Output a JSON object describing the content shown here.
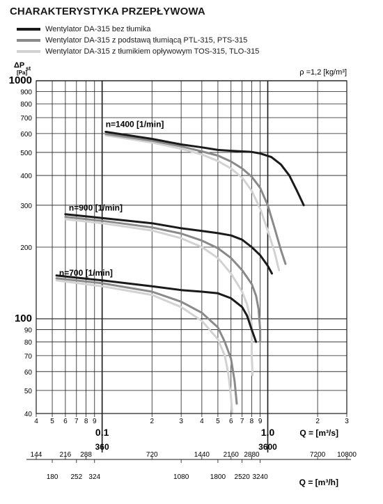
{
  "title": "CHARAKTERYSTYKA PRZEPŁYWOWA",
  "density_note": "ρ =1,2 [kg/m³]",
  "chart_data": {
    "type": "line",
    "title": "CHARAKTERYSTYKA PRZEPŁYWOWA",
    "ylabel": "ΔPst [Pa]",
    "xlabel": "Q = [m³/s]",
    "x2label": "Q = [m³/h]",
    "x_scale": "log",
    "y_scale": "log",
    "xlim": [
      0.04,
      3
    ],
    "ylim": [
      40,
      1000
    ],
    "grid": true,
    "legend": [
      {
        "name": "Wentylator DA-315 bez tłumika",
        "color": "#1a1a1a"
      },
      {
        "name": "Wentylator DA-315 z podstawą tłumiącą PTL-315, PTS-315",
        "color": "#8a8a8a"
      },
      {
        "name": "Wentylator DA-315 z tłumikiem opływowym TOS-315, TLO-315",
        "color": "#d2d2d2"
      }
    ],
    "y_ticks": [
      {
        "v": 40,
        "label": "40"
      },
      {
        "v": 50,
        "label": "50"
      },
      {
        "v": 60,
        "label": "60"
      },
      {
        "v": 70,
        "label": "70"
      },
      {
        "v": 80,
        "label": "80"
      },
      {
        "v": 90,
        "label": "90"
      },
      {
        "v": 100,
        "label": "100"
      },
      {
        "v": 200,
        "label": "200"
      },
      {
        "v": 300,
        "label": "300"
      },
      {
        "v": 400,
        "label": "400"
      },
      {
        "v": 500,
        "label": "500"
      },
      {
        "v": 600,
        "label": "600"
      },
      {
        "v": 700,
        "label": "700"
      },
      {
        "v": 800,
        "label": "800"
      },
      {
        "v": 900,
        "label": "900"
      },
      {
        "v": 1000,
        "label": "1000"
      }
    ],
    "x_ticks": [
      {
        "v": 0.04,
        "label": "4"
      },
      {
        "v": 0.05,
        "label": "5"
      },
      {
        "v": 0.06,
        "label": "6"
      },
      {
        "v": 0.07,
        "label": "7"
      },
      {
        "v": 0.08,
        "label": "8"
      },
      {
        "v": 0.09,
        "label": "9"
      },
      {
        "v": 0.2,
        "label": "2"
      },
      {
        "v": 0.3,
        "label": "3"
      },
      {
        "v": 0.4,
        "label": "4"
      },
      {
        "v": 0.5,
        "label": "5"
      },
      {
        "v": 0.6,
        "label": "6"
      },
      {
        "v": 0.7,
        "label": "7"
      },
      {
        "v": 0.8,
        "label": "8"
      },
      {
        "v": 0.9,
        "label": "9"
      },
      {
        "v": 2,
        "label": "2"
      },
      {
        "v": 3,
        "label": "3"
      }
    ],
    "x_major_ticks": [
      {
        "v": 0.1,
        "label": "0.1",
        "sub": "360"
      },
      {
        "v": 1.0,
        "label": "1.0",
        "sub": "3600"
      }
    ],
    "x2_ticks_top": [
      {
        "v": 144,
        "label": "144"
      },
      {
        "v": 216,
        "label": "216"
      },
      {
        "v": 288,
        "label": "288"
      },
      {
        "v": 720,
        "label": "720"
      },
      {
        "v": 1440,
        "label": "1440"
      },
      {
        "v": 2160,
        "label": "2160"
      },
      {
        "v": 2880,
        "label": "2880"
      },
      {
        "v": 7200,
        "label": "7200"
      },
      {
        "v": 10800,
        "label": "10800"
      }
    ],
    "x2_ticks_bottom": [
      {
        "v": 180,
        "label": "180"
      },
      {
        "v": 252,
        "label": "252"
      },
      {
        "v": 324,
        "label": "324"
      },
      {
        "v": 1080,
        "label": "1080"
      },
      {
        "v": 1800,
        "label": "1800"
      },
      {
        "v": 2520,
        "label": "2520"
      },
      {
        "v": 3240,
        "label": "3240"
      }
    ],
    "speed_labels": [
      {
        "text": "n=1400 [1/min]",
        "x": 0.105,
        "y": 640
      },
      {
        "text": "n=900 [1/min]",
        "x": 0.063,
        "y": 285
      },
      {
        "text": "n=700 [1/min]",
        "x": 0.055,
        "y": 152
      }
    ],
    "series": [
      {
        "name": "Wentylator DA-315 bez tłumika",
        "speed": "n=1400 [1/min]",
        "color": "#1a1a1a",
        "points": [
          [
            0.105,
            610
          ],
          [
            0.2,
            570
          ],
          [
            0.3,
            540
          ],
          [
            0.4,
            525
          ],
          [
            0.5,
            512
          ],
          [
            0.6,
            508
          ],
          [
            0.8,
            502
          ],
          [
            0.9,
            495
          ],
          [
            1.05,
            478
          ],
          [
            1.2,
            445
          ],
          [
            1.35,
            400
          ],
          [
            1.5,
            345
          ],
          [
            1.65,
            300
          ]
        ]
      },
      {
        "name": "Wentylator DA-315 z podstawą tłumiącą PTL-315, PTS-315",
        "speed": "n=1400 [1/min]",
        "color": "#8a8a8a",
        "points": [
          [
            0.105,
            598
          ],
          [
            0.2,
            560
          ],
          [
            0.3,
            530
          ],
          [
            0.4,
            505
          ],
          [
            0.5,
            485
          ],
          [
            0.6,
            458
          ],
          [
            0.7,
            428
          ],
          [
            0.8,
            395
          ],
          [
            0.9,
            355
          ],
          [
            1.0,
            300
          ],
          [
            1.1,
            240
          ],
          [
            1.2,
            195
          ],
          [
            1.28,
            170
          ]
        ]
      },
      {
        "name": "Wentylator DA-315 z tłumikiem opływowym TOS-315, TLO-315",
        "speed": "n=1400 [1/min]",
        "color": "#d2d2d2",
        "points": [
          [
            0.105,
            590
          ],
          [
            0.2,
            550
          ],
          [
            0.3,
            518
          ],
          [
            0.4,
            490
          ],
          [
            0.5,
            460
          ],
          [
            0.6,
            428
          ],
          [
            0.7,
            392
          ],
          [
            0.8,
            345
          ],
          [
            0.9,
            290
          ],
          [
            1.0,
            235
          ],
          [
            1.1,
            190
          ],
          [
            1.17,
            160
          ]
        ]
      },
      {
        "name": "Wentylator DA-315 bez tłumika",
        "speed": "n=900 [1/min]",
        "color": "#1a1a1a",
        "points": [
          [
            0.06,
            275
          ],
          [
            0.1,
            265
          ],
          [
            0.2,
            252
          ],
          [
            0.3,
            240
          ],
          [
            0.4,
            234
          ],
          [
            0.5,
            229
          ],
          [
            0.6,
            224
          ],
          [
            0.7,
            215
          ],
          [
            0.8,
            200
          ],
          [
            0.9,
            185
          ],
          [
            1.0,
            167
          ],
          [
            1.06,
            155
          ]
        ]
      },
      {
        "name": "Wentylator DA-315 z podstawą tłumiącą PTL-315, PTS-315",
        "speed": "n=900 [1/min]",
        "color": "#8a8a8a",
        "points": [
          [
            0.06,
            268
          ],
          [
            0.1,
            258
          ],
          [
            0.2,
            242
          ],
          [
            0.3,
            228
          ],
          [
            0.4,
            213
          ],
          [
            0.5,
            198
          ],
          [
            0.6,
            180
          ],
          [
            0.7,
            160
          ],
          [
            0.8,
            140
          ],
          [
            0.85,
            125
          ],
          [
            0.88,
            110
          ],
          [
            0.9,
            90
          ],
          [
            0.9,
            80
          ]
        ]
      },
      {
        "name": "Wentylator DA-315 z tłumikiem opływowym TOS-315, TLO-315",
        "speed": "n=900 [1/min]",
        "color": "#d2d2d2",
        "points": [
          [
            0.06,
            262
          ],
          [
            0.1,
            252
          ],
          [
            0.2,
            235
          ],
          [
            0.3,
            218
          ],
          [
            0.4,
            200
          ],
          [
            0.5,
            180
          ],
          [
            0.6,
            155
          ],
          [
            0.7,
            130
          ],
          [
            0.75,
            115
          ],
          [
            0.8,
            95
          ],
          [
            0.8,
            70
          ],
          [
            0.81,
            58
          ]
        ]
      },
      {
        "name": "Wentylator DA-315 bez tłumika",
        "speed": "n=700 [1/min]",
        "color": "#1a1a1a",
        "points": [
          [
            0.053,
            152
          ],
          [
            0.1,
            145
          ],
          [
            0.2,
            137
          ],
          [
            0.3,
            132
          ],
          [
            0.4,
            130
          ],
          [
            0.5,
            128
          ],
          [
            0.6,
            122
          ],
          [
            0.7,
            112
          ],
          [
            0.75,
            103
          ],
          [
            0.8,
            90
          ],
          [
            0.85,
            80
          ]
        ]
      },
      {
        "name": "Wentylator DA-315 z podstawą tłumiącą PTL-315, PTS-315",
        "speed": "n=700 [1/min]",
        "color": "#8a8a8a",
        "points": [
          [
            0.053,
            148
          ],
          [
            0.1,
            141
          ],
          [
            0.2,
            130
          ],
          [
            0.3,
            118
          ],
          [
            0.4,
            106
          ],
          [
            0.5,
            92
          ],
          [
            0.55,
            80
          ],
          [
            0.6,
            68
          ],
          [
            0.63,
            55
          ],
          [
            0.65,
            44
          ]
        ]
      },
      {
        "name": "Wentylator DA-315 z tłumikiem opływowym TOS-315, TLO-315",
        "speed": "n=700 [1/min]",
        "color": "#d2d2d2",
        "points": [
          [
            0.053,
            145
          ],
          [
            0.1,
            137
          ],
          [
            0.2,
            126
          ],
          [
            0.3,
            112
          ],
          [
            0.4,
            98
          ],
          [
            0.5,
            82
          ],
          [
            0.55,
            70
          ],
          [
            0.58,
            58
          ],
          [
            0.6,
            47
          ],
          [
            0.61,
            40
          ]
        ]
      }
    ]
  }
}
